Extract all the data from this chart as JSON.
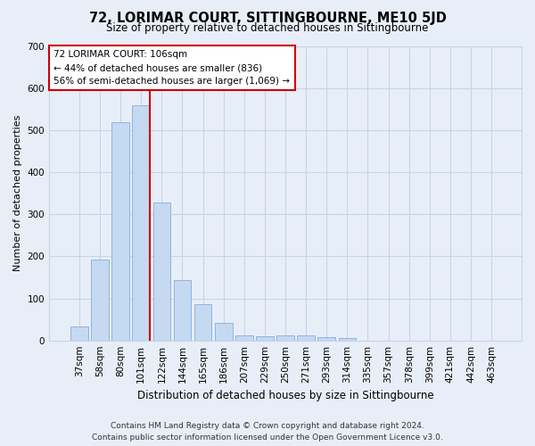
{
  "title": "72, LORIMAR COURT, SITTINGBOURNE, ME10 5JD",
  "subtitle": "Size of property relative to detached houses in Sittingbourne",
  "xlabel": "Distribution of detached houses by size in Sittingbourne",
  "ylabel": "Number of detached properties",
  "footer_line1": "Contains HM Land Registry data © Crown copyright and database right 2024.",
  "footer_line2": "Contains public sector information licensed under the Open Government Licence v3.0.",
  "categories": [
    "37sqm",
    "58sqm",
    "80sqm",
    "101sqm",
    "122sqm",
    "144sqm",
    "165sqm",
    "186sqm",
    "207sqm",
    "229sqm",
    "250sqm",
    "271sqm",
    "293sqm",
    "314sqm",
    "335sqm",
    "357sqm",
    "378sqm",
    "399sqm",
    "421sqm",
    "442sqm",
    "463sqm"
  ],
  "values": [
    33,
    192,
    519,
    560,
    328,
    143,
    86,
    42,
    13,
    10,
    11,
    11,
    8,
    5,
    0,
    0,
    0,
    0,
    0,
    0,
    0
  ],
  "bar_color": "#c5d9f1",
  "bar_edge_color": "#8db4e2",
  "annotation_text_line1": "72 LORIMAR COURT: 106sqm",
  "annotation_text_line2": "← 44% of detached houses are smaller (836)",
  "annotation_text_line3": "56% of semi-detached houses are larger (1,069) →",
  "annotation_box_facecolor": "#ffffff",
  "annotation_box_edgecolor": "#cc0000",
  "vline_color": "#cc0000",
  "vline_x": 3.425,
  "grid_color": "#c8d4e8",
  "bg_color": "#e8eef8",
  "ylim": [
    0,
    700
  ],
  "yticks": [
    0,
    100,
    200,
    300,
    400,
    500,
    600,
    700
  ],
  "title_fontsize": 10.5,
  "subtitle_fontsize": 8.5,
  "ylabel_fontsize": 8,
  "xlabel_fontsize": 8.5,
  "tick_fontsize": 7.5,
  "annot_fontsize": 7.5,
  "footer_fontsize": 6.5
}
